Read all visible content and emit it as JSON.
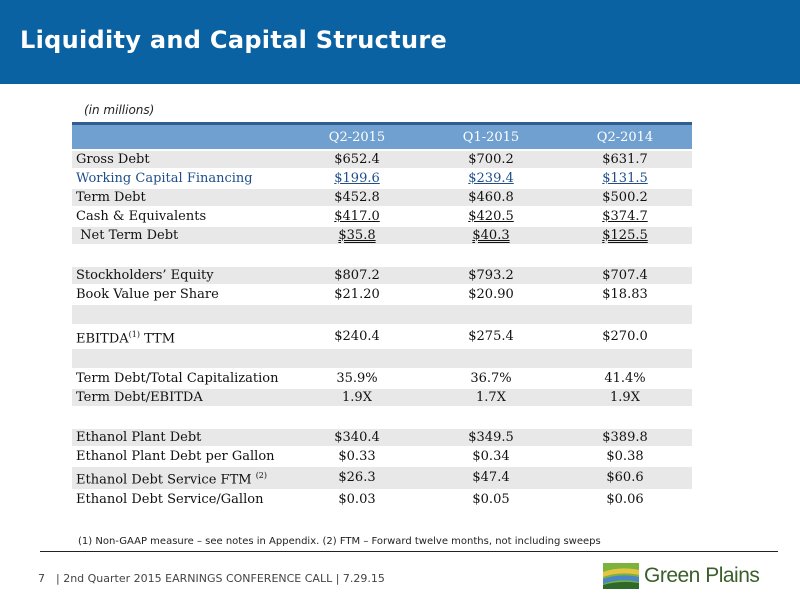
{
  "slide": {
    "title": "Liquidity and Capital Structure",
    "units_note": "(in millions)",
    "footnote": "(1) Non-GAAP measure – see notes in Appendix.  (2) FTM – Forward twelve months, not including sweeps",
    "page_number": "7",
    "footer_text": "| 2nd Quarter 2015 EARNINGS CONFERENCE CALL | 7.29.15",
    "logo_text": "Green Plains"
  },
  "colors": {
    "header_band": "#0b62a3",
    "table_header": "#6fa0cf",
    "row_shade": "#e8e8e8",
    "blue_text": "#1f4e8c",
    "logo_green": "#3a5f2a"
  },
  "table": {
    "columns": [
      "Q2-2015",
      "Q1-2015",
      "Q2-2014"
    ],
    "rows": [
      {
        "label": "Gross Debt",
        "values": [
          "$652.4",
          "$700.2",
          "$631.7"
        ]
      },
      {
        "label": "Working Capital Financing",
        "values": [
          "$199.6",
          "$239.4",
          "$131.5"
        ]
      },
      {
        "label": "Term Debt",
        "values": [
          "$452.8",
          "$460.8",
          "$500.2"
        ]
      },
      {
        "label": "Cash & Equivalents",
        "values": [
          "$417.0",
          "$420.5",
          "$374.7"
        ]
      },
      {
        "label": "Net Term Debt",
        "values": [
          "$35.8",
          "$40.3",
          "$125.5"
        ]
      },
      {
        "label": "",
        "values": [
          "",
          "",
          ""
        ]
      },
      {
        "label": "Stockholders’ Equity",
        "values": [
          "$807.2",
          "$793.2",
          "$707.4"
        ]
      },
      {
        "label": "Book Value per Share",
        "values": [
          "$21.20",
          "$20.90",
          "$18.83"
        ]
      },
      {
        "label": "",
        "values": [
          "",
          "",
          ""
        ]
      },
      {
        "label": "EBITDA",
        "sup": "(1)",
        "label_suffix": " TTM",
        "values": [
          "$240.4",
          "$275.4",
          "$270.0"
        ]
      },
      {
        "label": "",
        "values": [
          "",
          "",
          ""
        ]
      },
      {
        "label": "Term Debt/Total Capitalization",
        "values": [
          "35.9%",
          "36.7%",
          "41.4%"
        ]
      },
      {
        "label": "Term Debt/EBITDA",
        "values": [
          "1.9X",
          "1.7X",
          "1.9X"
        ]
      },
      {
        "label": "",
        "values": [
          "",
          "",
          ""
        ]
      },
      {
        "label": "Ethanol Plant Debt",
        "values": [
          "$340.4",
          "$349.5",
          "$389.8"
        ]
      },
      {
        "label": "Ethanol Plant Debt per Gallon",
        "values": [
          "$0.33",
          "$0.34",
          "$0.38"
        ]
      },
      {
        "label": "Ethanol Debt Service FTM ",
        "sup": "(2)",
        "values": [
          "$26.3",
          "$47.4",
          "$60.6"
        ]
      },
      {
        "label": "Ethanol Debt Service/Gallon",
        "values": [
          "$0.03",
          "$0.05",
          "$0.06"
        ]
      }
    ]
  }
}
